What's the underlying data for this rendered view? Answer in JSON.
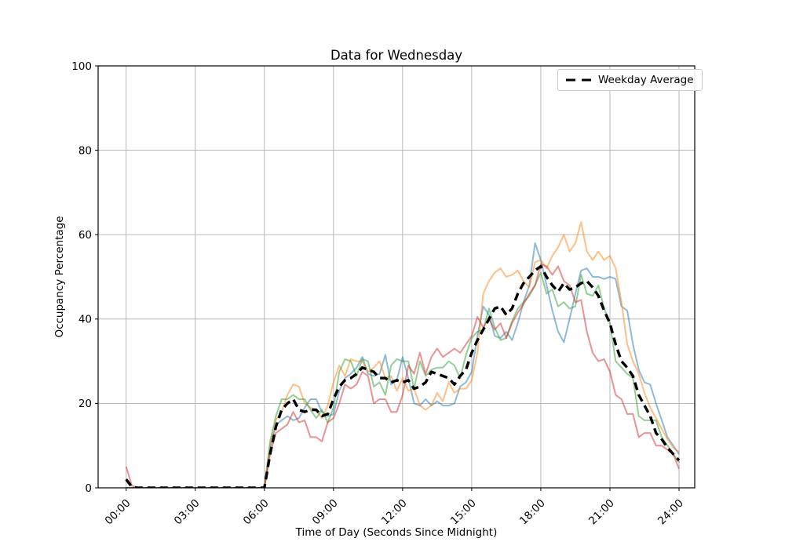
{
  "chart_data": {
    "type": "line",
    "title": "Data for Wednesday",
    "xlabel": "Time of Day (Seconds Since Midnight)",
    "ylabel": "Occupancy Percentage",
    "ylim": [
      0,
      100
    ],
    "xlim_hours": [
      -1.22,
      24.68
    ],
    "grid": true,
    "grid_color": "#b0b0b0",
    "x_tick_hours": [
      0,
      3,
      6,
      9,
      12,
      15,
      18,
      21,
      24
    ],
    "x_tick_labels": [
      "00:00",
      "03:00",
      "06:00",
      "09:00",
      "12:00",
      "15:00",
      "18:00",
      "21:00",
      "24:00"
    ],
    "y_ticks": [
      0,
      20,
      40,
      60,
      80,
      100
    ],
    "legend": {
      "label": "Weekday Average",
      "position": "upper right"
    },
    "x_hours": [
      0,
      0.25,
      0.5,
      0.75,
      1,
      1.25,
      1.5,
      1.75,
      2,
      2.25,
      2.5,
      2.75,
      3,
      3.25,
      3.5,
      3.75,
      4,
      4.25,
      4.5,
      4.75,
      5,
      5.25,
      5.5,
      5.75,
      6,
      6.25,
      6.5,
      6.75,
      7,
      7.25,
      7.5,
      7.75,
      8,
      8.25,
      8.5,
      8.75,
      9,
      9.25,
      9.5,
      9.75,
      10,
      10.25,
      10.5,
      10.75,
      11,
      11.25,
      11.5,
      11.75,
      12,
      12.25,
      12.5,
      12.75,
      13,
      13.25,
      13.5,
      13.75,
      14,
      14.25,
      14.5,
      14.75,
      15,
      15.25,
      15.5,
      15.75,
      16,
      16.25,
      16.5,
      16.75,
      17,
      17.25,
      17.5,
      17.75,
      18,
      18.25,
      18.5,
      18.75,
      19,
      19.25,
      19.5,
      19.75,
      20,
      20.25,
      20.5,
      20.75,
      21,
      21.25,
      21.5,
      21.75,
      22,
      22.25,
      22.5,
      22.75,
      23,
      23.25,
      23.5,
      23.75,
      24
    ],
    "series": [
      {
        "name": "weekday-1",
        "color": "#1f77b4",
        "opacity": 0.5,
        "width": 2,
        "dash": "",
        "values": [
          0,
          0,
          0,
          0,
          0,
          0,
          0,
          0,
          0,
          0,
          0,
          0,
          0,
          0,
          0,
          0,
          0,
          0,
          0,
          0,
          0,
          0,
          0,
          0,
          0,
          9,
          15,
          16,
          17,
          16,
          16.5,
          19,
          21,
          21,
          18,
          17,
          17.5,
          23,
          26,
          27,
          28.5,
          31,
          27,
          26.5,
          27,
          31.5,
          24.5,
          25.5,
          31,
          26,
          20,
          19.5,
          21,
          19.5,
          20.5,
          19.5,
          19.5,
          20,
          24,
          25,
          27.5,
          36,
          43,
          41,
          36,
          35.5,
          37,
          35,
          39,
          44,
          48,
          58,
          54,
          48,
          42,
          37,
          34.5,
          40,
          46,
          51.5,
          52,
          50,
          50,
          49.5,
          50,
          49.5,
          43,
          42,
          34,
          28,
          25,
          24.5,
          20,
          16,
          12,
          10,
          8
        ]
      },
      {
        "name": "weekday-2",
        "color": "#ff7f0e",
        "opacity": 0.5,
        "width": 2,
        "dash": "",
        "values": [
          0,
          0,
          0,
          0,
          0,
          0,
          0,
          0,
          0,
          0,
          0,
          0,
          0,
          0,
          0,
          0,
          0,
          0,
          0,
          0,
          0,
          0,
          0,
          0,
          0,
          10,
          16,
          18,
          22,
          24.5,
          24,
          20,
          19,
          18.5,
          16.5,
          19.5,
          25,
          29,
          26.5,
          30.5,
          30,
          30,
          27.5,
          28.5,
          30,
          26,
          26.5,
          23,
          26,
          23,
          23.5,
          19.5,
          18.5,
          19.5,
          22.5,
          20.5,
          25,
          22.5,
          23.5,
          23.5,
          25.5,
          32,
          46,
          49,
          51,
          52,
          50,
          50.5,
          51.5,
          49,
          47.5,
          53.5,
          54,
          52,
          55,
          57,
          60,
          56,
          58,
          63,
          56,
          54,
          56,
          54,
          55,
          52,
          44,
          34,
          30,
          27,
          22.5,
          19,
          16.5,
          14,
          11.5,
          9.5,
          8.5
        ]
      },
      {
        "name": "weekday-3",
        "color": "#2ca02c",
        "opacity": 0.5,
        "width": 2,
        "dash": "",
        "values": [
          0,
          0,
          0,
          0,
          0,
          0,
          0,
          0,
          0,
          0,
          0,
          0,
          0,
          0,
          0,
          0,
          0,
          0,
          0,
          0,
          0,
          0,
          0,
          0,
          0,
          11,
          17,
          21,
          21,
          22,
          21,
          21,
          18.5,
          16.5,
          18.5,
          15.5,
          19,
          27.5,
          30.5,
          30,
          26.5,
          30.5,
          30,
          24,
          25,
          22,
          29,
          30.5,
          30,
          30,
          23.5,
          30,
          26.5,
          28,
          28.5,
          28.5,
          30,
          29,
          26,
          31.5,
          35.5,
          37,
          37.5,
          42.5,
          38,
          35,
          35.5,
          39.5,
          42.5,
          44,
          45.5,
          48,
          51,
          46,
          47,
          43,
          44,
          42.5,
          43,
          50.5,
          46,
          45.5,
          48,
          42.5,
          39,
          30,
          28.5,
          27,
          26,
          17,
          16,
          16,
          16,
          12,
          10,
          8,
          6
        ]
      },
      {
        "name": "weekday-4",
        "color": "#d62728",
        "opacity": 0.5,
        "width": 2,
        "dash": "",
        "values": [
          5,
          0.5,
          0,
          0,
          0,
          0,
          0,
          0,
          0,
          0,
          0,
          0,
          0,
          0,
          0,
          0,
          0,
          0,
          0,
          0,
          0,
          0,
          0,
          0,
          0,
          8,
          13,
          14,
          15,
          18,
          15.5,
          16,
          12,
          12,
          11,
          15.5,
          16.5,
          20,
          24.5,
          23.5,
          24.5,
          27.5,
          26.5,
          20,
          21,
          21,
          18,
          18,
          22,
          29,
          27,
          32,
          27,
          31,
          33,
          31,
          32,
          33,
          32,
          34,
          36,
          40.5,
          38,
          40,
          37.5,
          39,
          35.5,
          39,
          41.5,
          43.5,
          46,
          48,
          53,
          52.5,
          50.5,
          52.5,
          49,
          48,
          44,
          44.5,
          37,
          32,
          30,
          30.5,
          27.5,
          22,
          21,
          17.5,
          17.5,
          12,
          13,
          13,
          10,
          10,
          9,
          8,
          4.5
        ]
      },
      {
        "name": "weekday-average",
        "label": "Weekday Average",
        "color": "#000000",
        "opacity": 1,
        "width": 3.4,
        "dash": "10 6",
        "values": [
          2,
          0.2,
          0,
          0,
          0,
          0,
          0,
          0,
          0,
          0,
          0,
          0,
          0,
          0,
          0,
          0,
          0,
          0,
          0,
          0,
          0,
          0,
          0,
          0,
          0,
          8,
          14.5,
          18.5,
          20,
          21,
          18.5,
          18,
          18.5,
          18.5,
          17,
          17.5,
          21,
          24,
          25.5,
          26,
          27,
          28.5,
          28,
          27.5,
          26,
          26,
          25,
          25.5,
          25,
          25.5,
          23.5,
          24,
          25,
          27.5,
          27,
          26.5,
          26,
          24.5,
          26.5,
          28,
          32,
          35,
          37.5,
          40,
          42.5,
          43,
          41,
          42.5,
          46,
          48.5,
          50,
          51.5,
          52.5,
          50,
          48,
          46.5,
          48.5,
          47,
          47.5,
          48.5,
          49,
          47.5,
          45.5,
          42,
          39,
          34,
          30,
          28.5,
          26.5,
          22,
          19.5,
          17,
          13,
          11.5,
          9.5,
          8,
          6.5
        ]
      }
    ]
  }
}
